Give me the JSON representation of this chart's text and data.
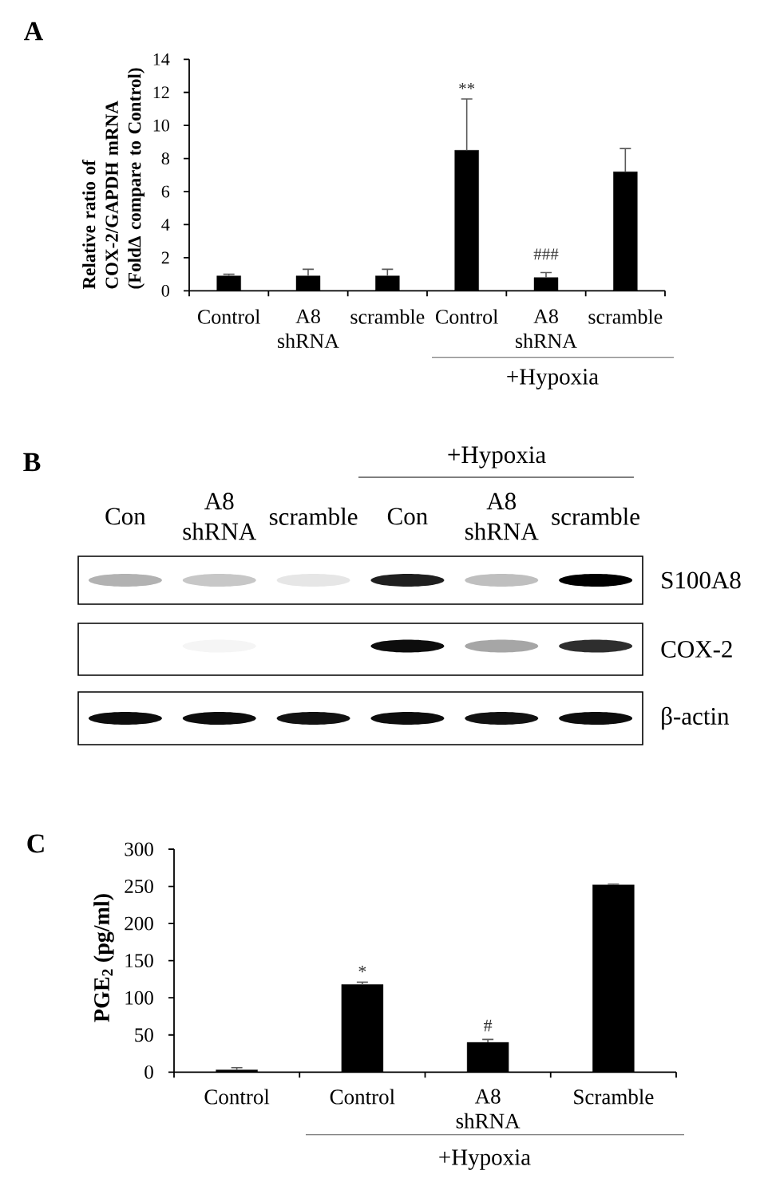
{
  "chart_data": [
    {
      "type": "bar",
      "title": "A",
      "ylabel": "Relative ratio of COX-2/GAPDH mRNA (FoldΔ compare to Control)",
      "categories": [
        "Control",
        "A8 shRNA",
        "scramble",
        "Control",
        "A8 shRNA",
        "scramble"
      ],
      "values": [
        0.9,
        0.9,
        0.9,
        8.5,
        0.8,
        7.2
      ],
      "color": "#000000",
      "errors": [
        [
          0.9,
          1.0
        ],
        [
          0.9,
          1.3
        ],
        [
          0.9,
          1.3
        ],
        [
          8.5,
          11.6
        ],
        [
          0.8,
          1.1
        ],
        [
          7.2,
          8.6
        ]
      ],
      "ylim": [
        0,
        14
      ],
      "yticks": [
        0,
        2,
        4,
        6,
        8,
        10,
        12,
        14
      ],
      "annotations": [
        "**",
        "###",
        "+Hypoxia"
      ]
    },
    {
      "type": "other",
      "title": "B",
      "categories": [
        "Con",
        "A8 shRNA",
        "scramble",
        "Con",
        "A8 shRNA",
        "scramble"
      ],
      "annotations": [
        "+Hypoxia",
        "S100A8",
        "COX-2",
        "β-actin"
      ]
    },
    {
      "type": "bar",
      "title": "C",
      "ylabel": "PGE$_{2}$ (pg/ml)",
      "categories": [
        "Control",
        "Control",
        "A8 shRNA",
        "Scramble"
      ],
      "values": [
        3,
        118,
        40,
        252
      ],
      "color": "#000000",
      "errors": [
        [
          3,
          6
        ],
        [
          118,
          121
        ],
        [
          40,
          44
        ],
        [
          252,
          253
        ]
      ],
      "ylim": [
        0,
        300
      ],
      "yticks": [
        0,
        50,
        100,
        150,
        200,
        250,
        300
      ],
      "annotations": [
        "*",
        "#",
        "+Hypoxia"
      ]
    }
  ]
}
